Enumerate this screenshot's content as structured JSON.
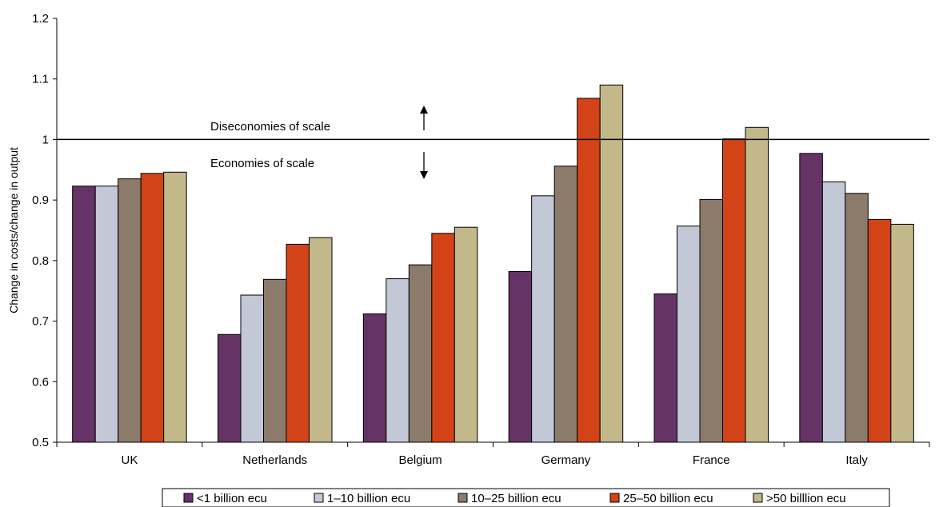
{
  "chart_data": {
    "type": "bar",
    "title": "",
    "xlabel": "",
    "ylabel": "Change in costs/change in output",
    "ylim": [
      0.5,
      1.2
    ],
    "yticks": [
      "0.5",
      "0.6",
      "0.7",
      "0.8",
      "0.9",
      "1",
      "1.1",
      "1.2"
    ],
    "grid": false,
    "legend_position": "bottom",
    "categories": [
      "UK",
      "Netherlands",
      "Belgium",
      "Germany",
      "France",
      "Italy"
    ],
    "series": [
      {
        "name": "<1 billion ecu",
        "color": "#663366",
        "values": [
          0.923,
          0.678,
          0.712,
          0.782,
          0.745,
          0.977
        ]
      },
      {
        "name": "1–10 billion ecu",
        "color": "#c3c8d7",
        "values": [
          0.923,
          0.743,
          0.77,
          0.907,
          0.857,
          0.93
        ]
      },
      {
        "name": "10–25 billion ecu",
        "color": "#8c7b6b",
        "values": [
          0.935,
          0.769,
          0.793,
          0.956,
          0.901,
          0.911
        ]
      },
      {
        "name": "25–50 billion ecu",
        "color": "#d24318",
        "values": [
          0.944,
          0.827,
          0.845,
          1.068,
          1.001,
          0.868
        ]
      },
      {
        "name": ">50 billlion ecu",
        "color": "#c2b88a",
        "values": [
          0.946,
          0.838,
          0.855,
          1.09,
          1.02,
          0.86
        ]
      }
    ],
    "reference_line": {
      "value": 1
    },
    "annotations": {
      "above": "Diseconomies of scale",
      "below": "Economies of scale"
    }
  }
}
